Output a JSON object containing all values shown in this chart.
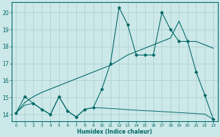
{
  "xlabel": "Humidex (Indice chaleur)",
  "xlim": [
    -0.5,
    23.5
  ],
  "ylim": [
    13.6,
    20.6
  ],
  "background_color": "#cce8e8",
  "grid_color": "#aacccc",
  "line_color": "#006666",
  "line1_x": [
    0,
    1,
    2,
    3,
    4,
    5,
    6,
    7,
    8,
    9,
    10,
    11,
    12,
    13,
    14,
    15,
    16,
    17,
    18,
    19,
    20,
    21,
    22,
    23
  ],
  "line1_y": [
    14.1,
    15.05,
    14.65,
    14.3,
    14.0,
    15.05,
    14.2,
    13.85,
    14.3,
    14.4,
    15.5,
    17.0,
    20.3,
    19.3,
    17.5,
    17.5,
    17.5,
    20.0,
    19.0,
    18.3,
    18.3,
    16.5,
    15.15,
    13.7
  ],
  "line2_x": [
    0,
    1,
    2,
    3,
    4,
    5,
    6,
    7,
    8,
    9,
    10,
    11,
    12,
    13,
    14,
    15,
    16,
    17,
    18,
    19,
    20,
    21,
    22,
    23
  ],
  "line2_y": [
    14.1,
    14.7,
    15.05,
    15.3,
    15.5,
    15.7,
    15.9,
    16.1,
    16.3,
    16.5,
    16.7,
    16.9,
    17.2,
    17.5,
    17.7,
    17.9,
    18.1,
    18.3,
    18.5,
    19.5,
    18.3,
    18.3,
    18.1,
    17.9
  ],
  "line3_x": [
    0,
    1,
    2,
    3,
    4,
    5,
    6,
    7,
    8,
    9,
    10,
    11,
    12,
    13,
    14,
    15,
    16,
    17,
    18,
    19,
    20,
    21,
    22,
    23
  ],
  "line3_y": [
    14.1,
    14.55,
    14.65,
    14.3,
    14.0,
    15.05,
    14.2,
    13.85,
    14.3,
    14.4,
    14.38,
    14.35,
    14.32,
    14.28,
    14.25,
    14.22,
    14.2,
    14.17,
    14.14,
    14.11,
    14.08,
    14.05,
    14.02,
    13.7
  ],
  "yticks": [
    14,
    15,
    16,
    17,
    18,
    19,
    20
  ],
  "xticks": [
    0,
    1,
    2,
    3,
    4,
    5,
    6,
    7,
    8,
    9,
    10,
    11,
    12,
    13,
    14,
    15,
    16,
    17,
    18,
    19,
    20,
    21,
    22,
    23
  ],
  "markersize": 2.5
}
